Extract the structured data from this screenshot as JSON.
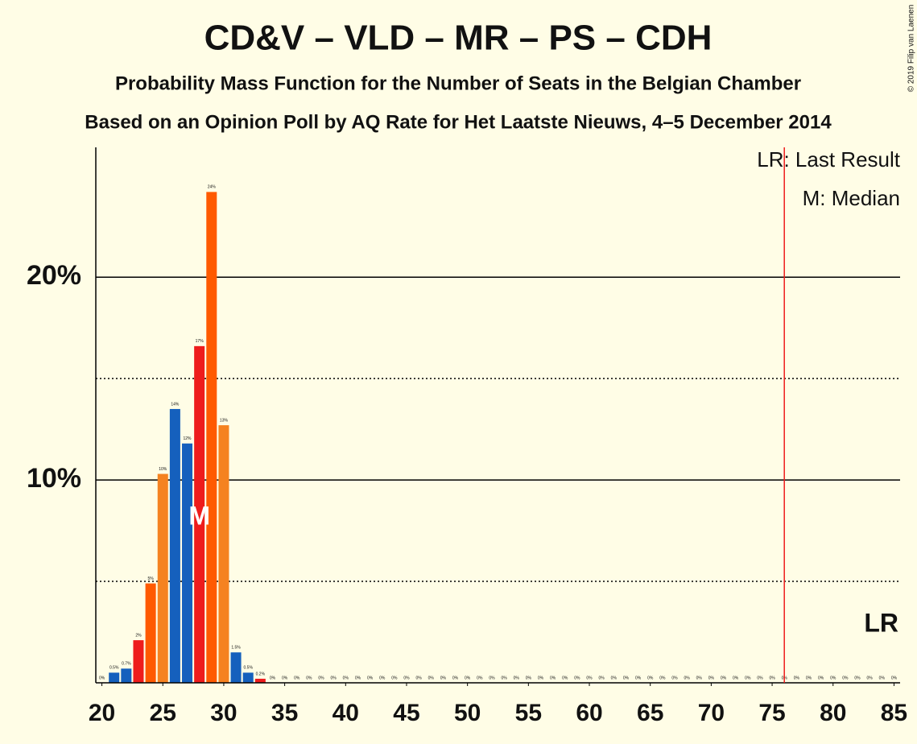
{
  "chart_data": {
    "type": "bar",
    "title": "CD&V – VLD – MR – PS – CDH",
    "subtitle": "Probability Mass Function for the Number of Seats in the Belgian Chamber",
    "subtitle2": "Based on an Opinion Poll by AQ Rate for Het Laatste Nieuws, 4–5 December 2014",
    "copyright": "© 2019 Filip van Laenen",
    "legend_lr": "LR: Last Result",
    "legend_median": "M: Median",
    "lr_label": "LR",
    "median_label": "M",
    "last_result": 76,
    "median": 28,
    "x": [
      20,
      21,
      22,
      23,
      24,
      25,
      26,
      27,
      28,
      29,
      30,
      31,
      32,
      33,
      34,
      35,
      36,
      37,
      38,
      39,
      40,
      41,
      42,
      43,
      44,
      45,
      46,
      47,
      48,
      49,
      50,
      51,
      52,
      53,
      54,
      55,
      56,
      57,
      58,
      59,
      60,
      61,
      62,
      63,
      64,
      65,
      66,
      67,
      68,
      69,
      70,
      71,
      72,
      73,
      74,
      75,
      76,
      77,
      78,
      79,
      80,
      81,
      82,
      83,
      84,
      85
    ],
    "values": [
      0,
      0.5,
      0.7,
      2.1,
      4.9,
      10.3,
      13.5,
      11.8,
      16.6,
      24.2,
      12.7,
      1.5,
      0.5,
      0.2,
      0,
      0,
      0,
      0,
      0,
      0,
      0,
      0,
      0,
      0,
      0,
      0,
      0,
      0,
      0,
      0,
      0,
      0,
      0,
      0,
      0,
      0,
      0,
      0,
      0,
      0,
      0,
      0,
      0,
      0,
      0,
      0,
      0,
      0,
      0,
      0,
      0,
      0,
      0,
      0,
      0,
      0,
      0,
      0,
      0,
      0,
      0,
      0,
      0,
      0,
      0,
      0
    ],
    "value_labels": [
      "0%",
      "0.5%",
      "0.7%",
      "2%",
      "5%",
      "10%",
      "14%",
      "12%",
      "17%",
      "24%",
      "13%",
      "1.5%",
      "0.5%",
      "0.2%",
      "0%",
      "0%",
      "0%",
      "0%",
      "0%",
      "0%",
      "0%",
      "0%",
      "0%",
      "0%",
      "0%",
      "0%",
      "0%",
      "0%",
      "0%",
      "0%",
      "0%",
      "0%",
      "0%",
      "0%",
      "0%",
      "0%",
      "0%",
      "0%",
      "0%",
      "0%",
      "0%",
      "0%",
      "0%",
      "0%",
      "0%",
      "0%",
      "0%",
      "0%",
      "0%",
      "0%",
      "0%",
      "0%",
      "0%",
      "0%",
      "0%",
      "0%",
      "0%",
      "0%",
      "0%",
      "0%",
      "0%",
      "0%",
      "0%",
      "0%",
      "0%",
      "0%"
    ],
    "palette": [
      "#f58220",
      "#1560bd",
      "#1560bd",
      "#ee1c1c",
      "#ff5a00"
    ],
    "lr_color": "#ee1c1c",
    "xlim": [
      19.5,
      85.5
    ],
    "xticks": [
      20,
      25,
      30,
      35,
      40,
      45,
      50,
      55,
      60,
      65,
      70,
      75,
      80,
      85
    ],
    "ylim": [
      0,
      26.4
    ],
    "yticks": [
      {
        "value": 10,
        "label": "10%"
      },
      {
        "value": 20,
        "label": "20%"
      }
    ],
    "minor_grid": [
      5,
      15
    ],
    "grid": true
  }
}
